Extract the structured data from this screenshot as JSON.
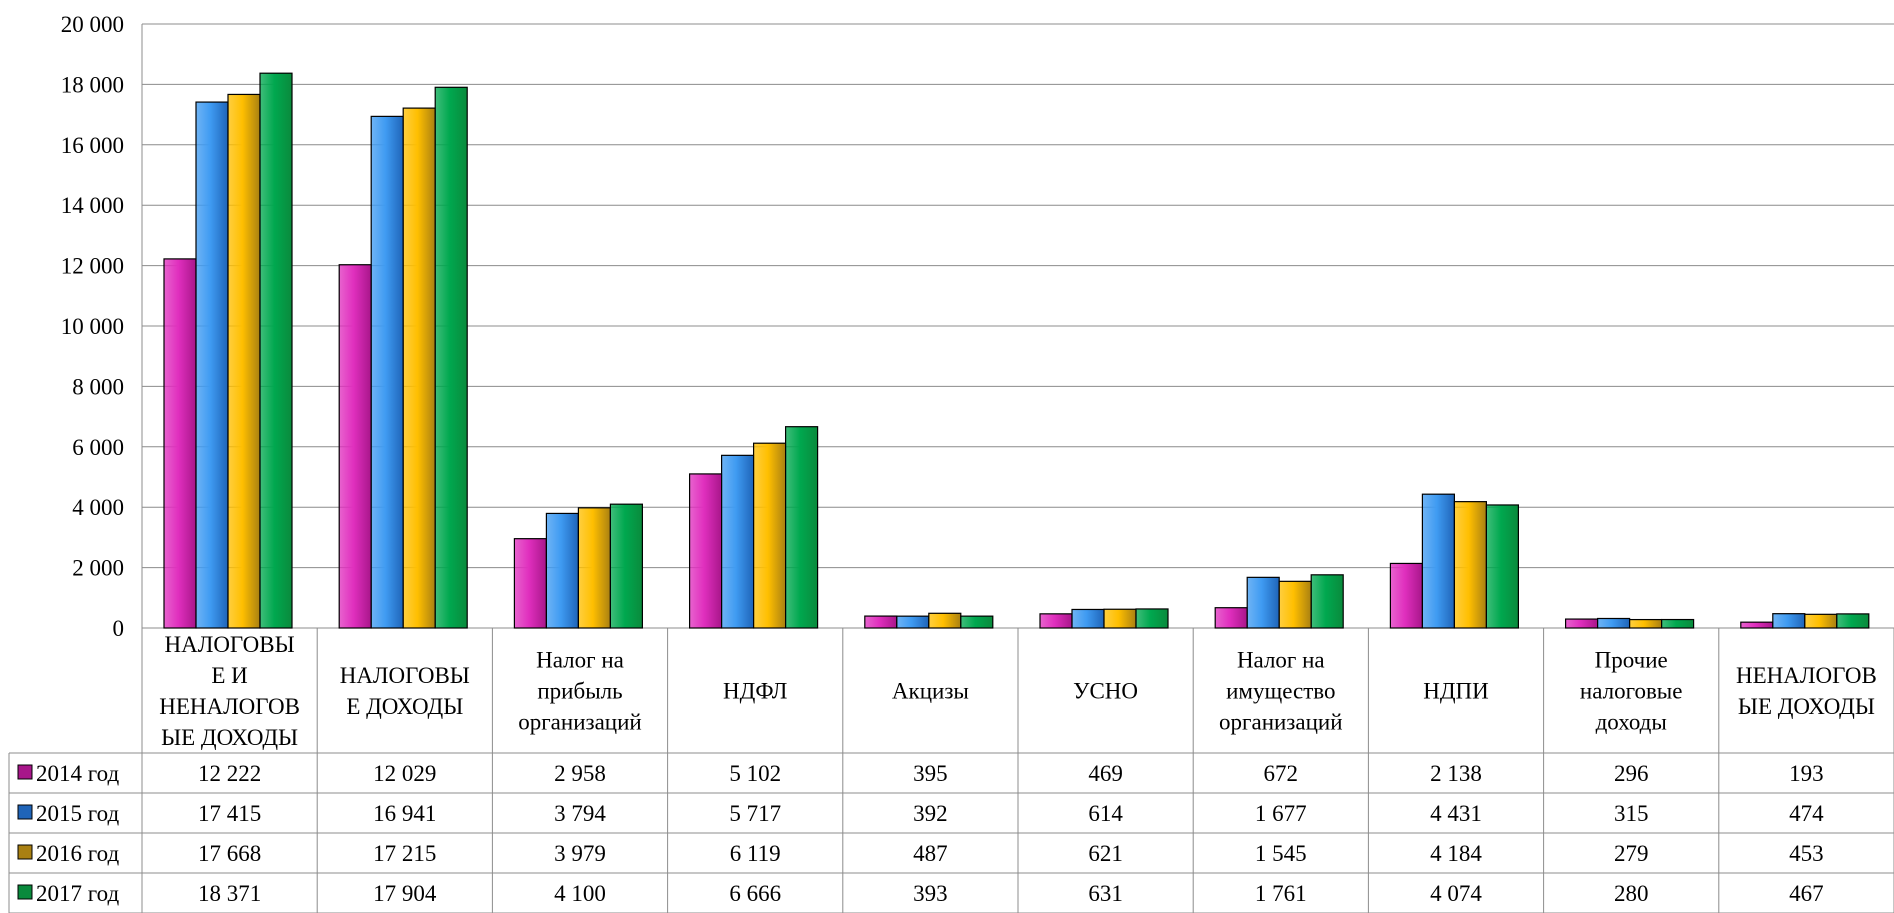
{
  "chart_data": {
    "type": "bar",
    "categories": [
      [
        "НАЛОГОВЫ",
        "Е И",
        "НЕНАЛОГОВ",
        "ЫЕ ДОХОДЫ"
      ],
      [
        "НАЛОГОВЫ",
        "Е ДОХОДЫ"
      ],
      [
        "Налог на",
        "прибыль",
        "организаций"
      ],
      [
        "НДФЛ"
      ],
      [
        "Акцизы"
      ],
      [
        "УСНО"
      ],
      [
        "Налог на",
        "имущество",
        "организаций"
      ],
      [
        "НДПИ"
      ],
      [
        "Прочие",
        "налоговые",
        "доходы"
      ],
      [
        "НЕНАЛОГОВ",
        "ЫЕ ДОХОДЫ"
      ]
    ],
    "series": [
      {
        "name": "2014 год",
        "color": "#e02fbe",
        "values": [
          12222,
          12029,
          2958,
          5102,
          395,
          469,
          672,
          2138,
          296,
          193
        ],
        "labels": [
          "12 222",
          "12 029",
          "2 958",
          "5 102",
          "395",
          "469",
          "672",
          "2 138",
          "296",
          "193"
        ]
      },
      {
        "name": "2015 год",
        "color": "#3f9bf2",
        "values": [
          17415,
          16941,
          3794,
          5717,
          392,
          614,
          1677,
          4431,
          315,
          474
        ],
        "labels": [
          "17 415",
          "16 941",
          "3 794",
          "5 717",
          "392",
          "614",
          "1 677",
          "4 431",
          "315",
          "474"
        ]
      },
      {
        "name": "2016 год",
        "color": "#ffbf00",
        "values": [
          17668,
          17215,
          3979,
          6119,
          487,
          621,
          1545,
          4184,
          279,
          453
        ],
        "labels": [
          "17 668",
          "17 215",
          "3 979",
          "6 119",
          "487",
          "621",
          "1 545",
          "4 184",
          "279",
          "453"
        ]
      },
      {
        "name": "2017 год",
        "color": "#00a84f",
        "values": [
          18371,
          17904,
          4100,
          6666,
          393,
          631,
          1761,
          4074,
          280,
          467
        ],
        "labels": [
          "18 371",
          "17 904",
          "4 100",
          "6 666",
          "393",
          "631",
          "1 761",
          "4 074",
          "280",
          "467"
        ]
      }
    ],
    "legend_square_colors": [
      "#a8168a",
      "#1f64b8",
      "#a98012",
      "#0a8a3c"
    ],
    "y_ticks": [
      "0",
      "2 000",
      "4 000",
      "6 000",
      "8 000",
      "10 000",
      "12 000",
      "14 000",
      "16 000",
      "18 000",
      "20 000"
    ],
    "ylim": [
      0,
      20000
    ],
    "grid": true,
    "data_table": true,
    "legend": "data-table-left"
  }
}
